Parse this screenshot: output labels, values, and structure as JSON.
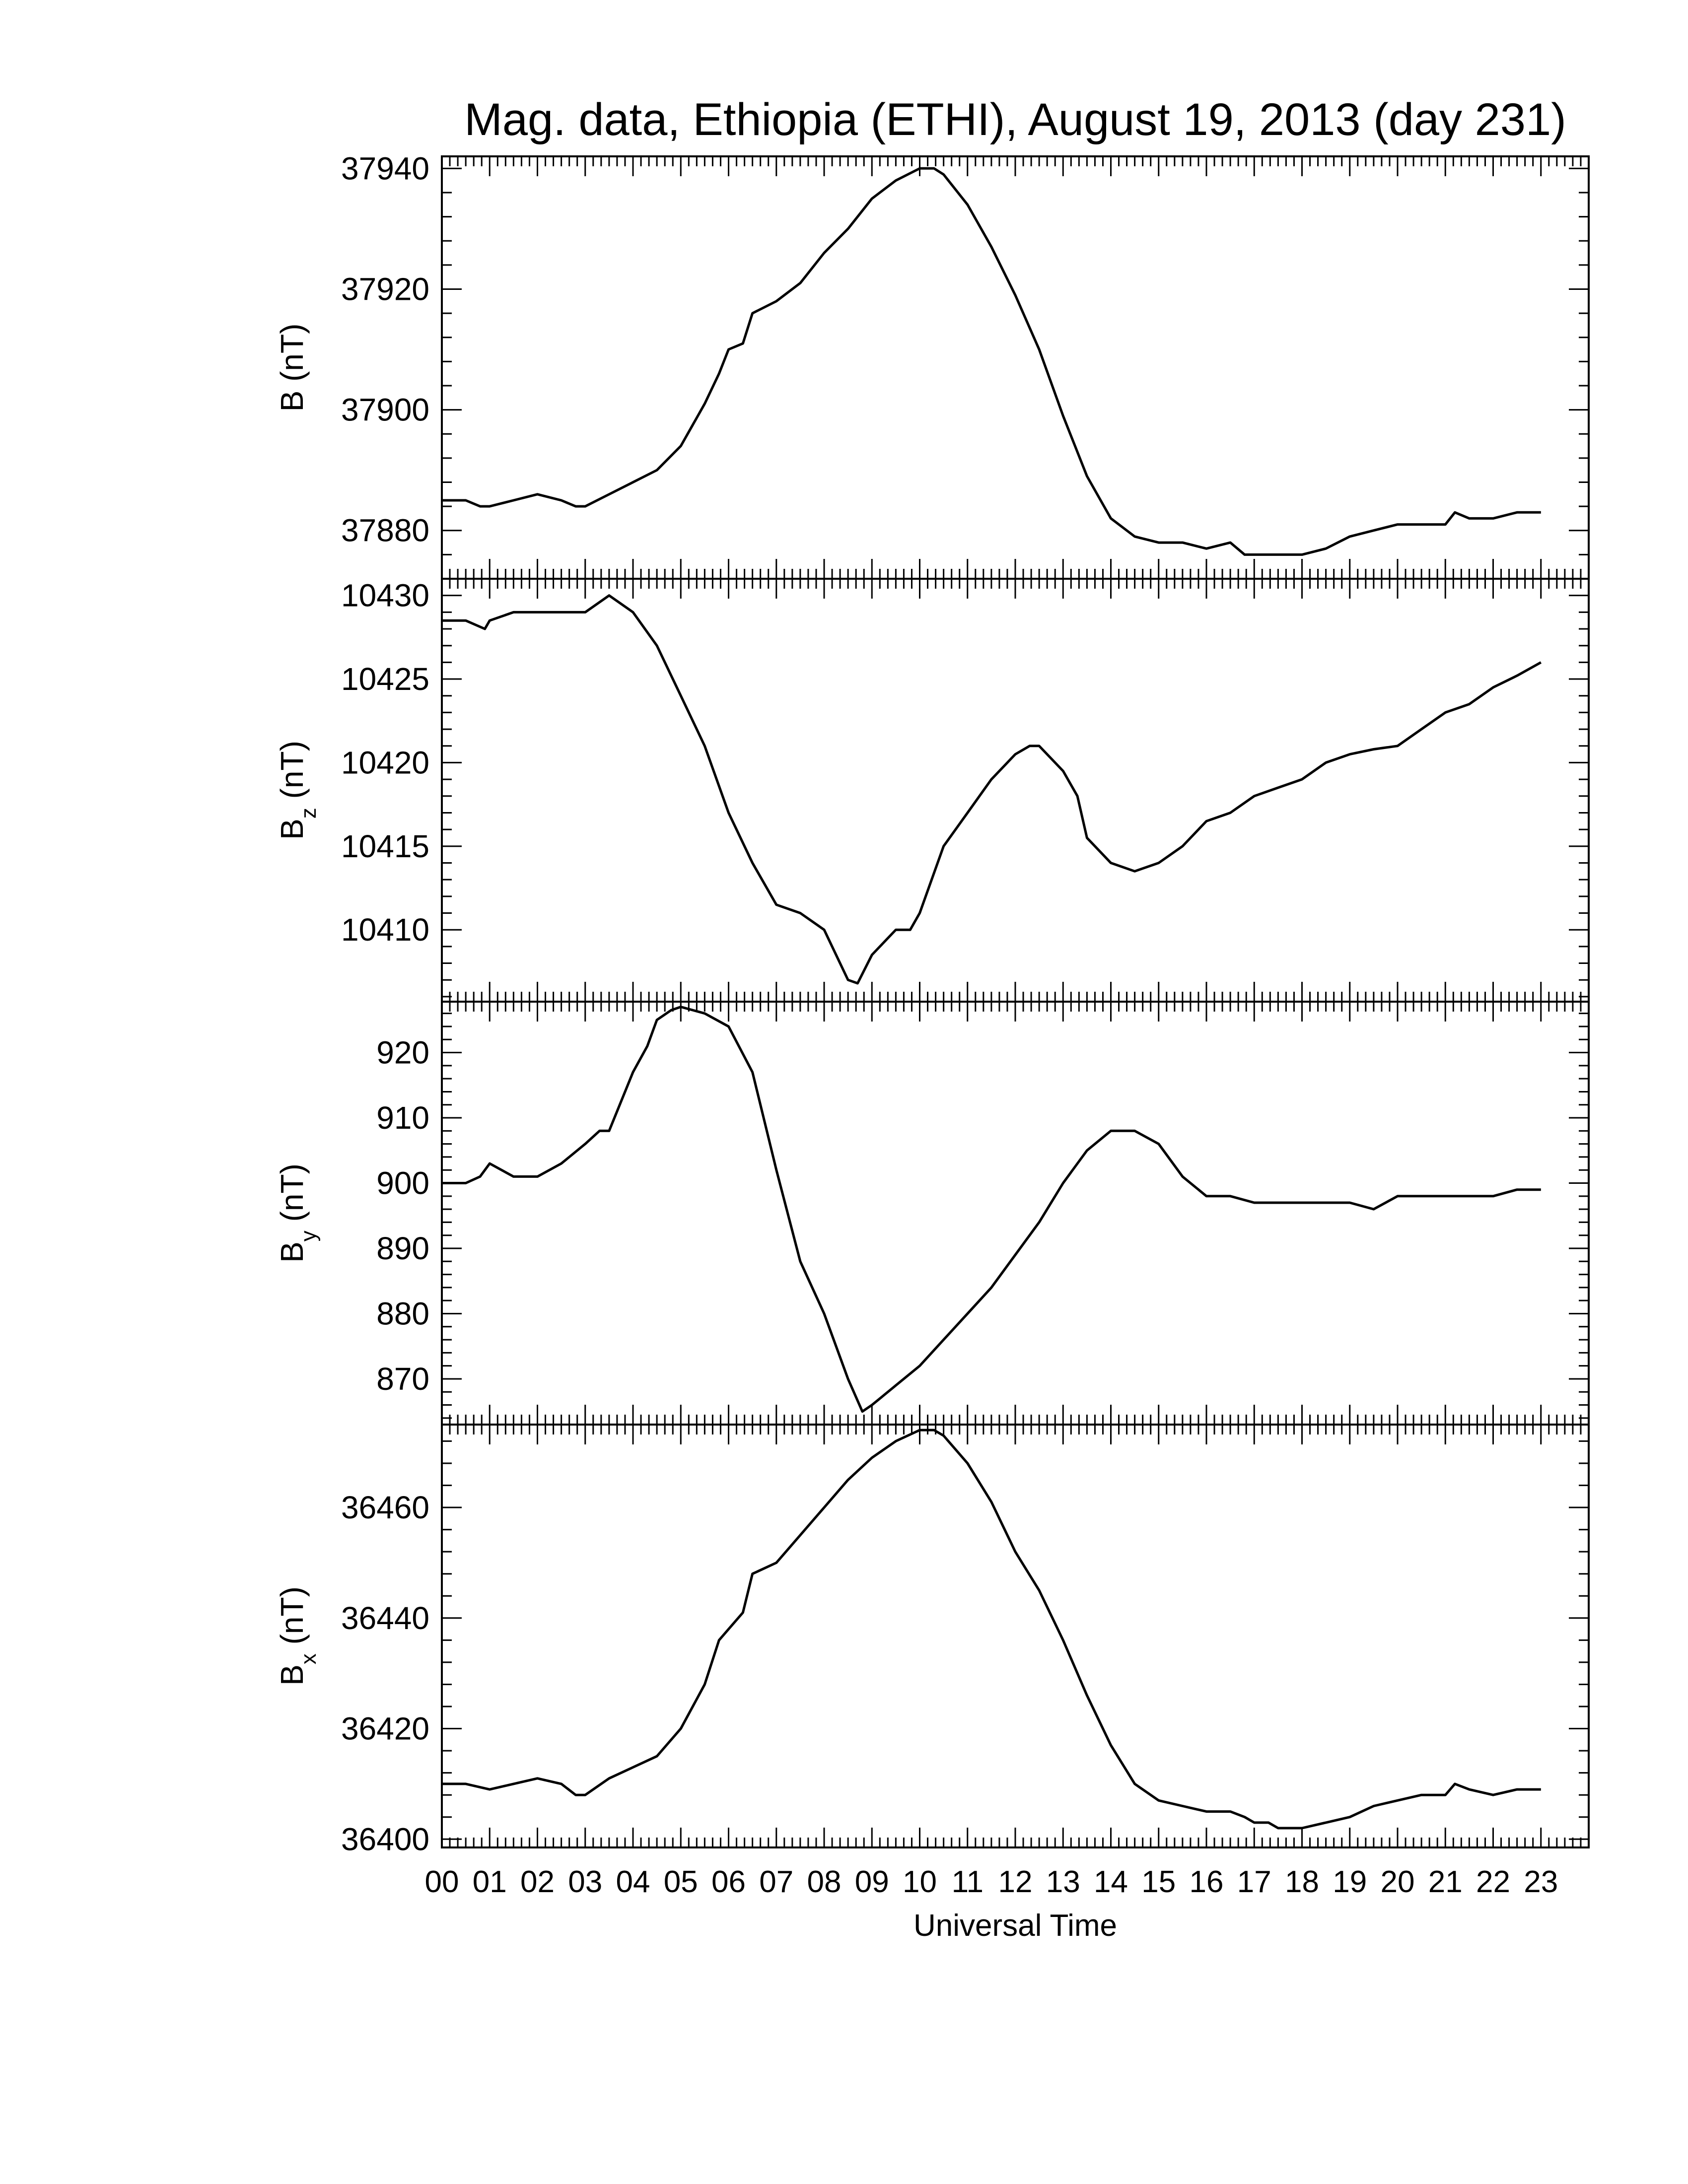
{
  "chart_data": {
    "type": "line",
    "title": "Mag. data, Ethiopia (ETHI), August 19, 2013 (day 231)",
    "xlabel": "Universal Time",
    "xlim": [
      0,
      24
    ],
    "x_tick_labels": [
      "00",
      "01",
      "02",
      "03",
      "04",
      "05",
      "06",
      "07",
      "08",
      "09",
      "10",
      "11",
      "12",
      "13",
      "14",
      "15",
      "16",
      "17",
      "18",
      "19",
      "20",
      "21",
      "22",
      "23"
    ],
    "color": "#000000",
    "panels": [
      {
        "name": "B",
        "ylabel_main": "B",
        "ylabel_sub": "",
        "ylabel_unit": " (nT)",
        "ylim": [
          37872,
          37942
        ],
        "y_ticks": [
          37880,
          37900,
          37920,
          37940
        ],
        "y_tick_labels": [
          "37880",
          "37900",
          "37920",
          "37940"
        ],
        "x": [
          0,
          0.5,
          0.8,
          1,
          1.5,
          2,
          2.5,
          2.8,
          3,
          3.5,
          4,
          4.5,
          5,
          5.5,
          5.8,
          6,
          6.3,
          6.5,
          7,
          7.5,
          8,
          8.5,
          9,
          9.5,
          10,
          10.3,
          10.5,
          11,
          11.5,
          12,
          12.5,
          13,
          13.5,
          14,
          14.5,
          15,
          15.5,
          16,
          16.5,
          16.8,
          17,
          17.3,
          17.5,
          18,
          18.5,
          19,
          19.5,
          20,
          20.5,
          21,
          21.2,
          21.5,
          22,
          22.5,
          23
        ],
        "y": [
          37885,
          37885,
          37884,
          37884,
          37885,
          37886,
          37885,
          37884,
          37884,
          37886,
          37888,
          37890,
          37894,
          37901,
          37906,
          37910,
          37911,
          37916,
          37918,
          37921,
          37926,
          37930,
          37935,
          37938,
          37940,
          37940,
          37939,
          37934,
          37927,
          37919,
          37910,
          37899,
          37889,
          37882,
          37879,
          37878,
          37878,
          37877,
          37878,
          37876,
          37876,
          37876,
          37876,
          37876,
          37877,
          37879,
          37880,
          37881,
          37881,
          37881,
          37883,
          37882,
          37882,
          37883,
          37883
        ]
      },
      {
        "name": "Bz",
        "ylabel_main": "B",
        "ylabel_sub": "z",
        "ylabel_unit": " (nT)",
        "ylim": [
          10405.7,
          10431
        ],
        "y_ticks": [
          10410,
          10415,
          10420,
          10425,
          10430
        ],
        "y_tick_labels": [
          "10410",
          "10415",
          "10420",
          "10425",
          "10430"
        ],
        "x": [
          0,
          0.5,
          0.9,
          1,
          1.5,
          2,
          2.5,
          3,
          3.5,
          4,
          4.5,
          5,
          5.5,
          6,
          6.5,
          7,
          7.5,
          8,
          8.5,
          8.7,
          9,
          9.5,
          9.8,
          10,
          10.5,
          11,
          11.5,
          12,
          12.3,
          12.5,
          13,
          13.3,
          13.5,
          14,
          14.5,
          15,
          15.5,
          16,
          16.5,
          17,
          17.5,
          18,
          18.5,
          19,
          19.5,
          20,
          20.5,
          21,
          21.5,
          22,
          22.5,
          23
        ],
        "y": [
          10428.5,
          10428.5,
          10428,
          10428.5,
          10429,
          10429,
          10429,
          10429,
          10430,
          10429,
          10427,
          10424,
          10421,
          10417,
          10414,
          10411.5,
          10411,
          10410,
          10407,
          10406.8,
          10408.5,
          10410,
          10410,
          10411,
          10415,
          10417,
          10419,
          10420.5,
          10421,
          10421,
          10419.5,
          10418,
          10415.5,
          10414,
          10413.5,
          10414,
          10415,
          10416.5,
          10417,
          10418,
          10418.5,
          10419,
          10420,
          10420.5,
          10420.8,
          10421,
          10422,
          10423,
          10423.5,
          10424.5,
          10425.2,
          10426
        ]
      },
      {
        "name": "By",
        "ylabel_main": "B",
        "ylabel_sub": "y",
        "ylabel_unit": " (nT)",
        "ylim": [
          863,
          927.8
        ],
        "y_ticks": [
          870,
          880,
          890,
          900,
          910,
          920
        ],
        "y_tick_labels": [
          "870",
          "880",
          "890",
          "900",
          "910",
          "920"
        ],
        "x": [
          0,
          0.5,
          0.8,
          1,
          1.5,
          2,
          2.5,
          3,
          3.3,
          3.5,
          4,
          4.3,
          4.5,
          4.8,
          5,
          5.5,
          6,
          6.5,
          7,
          7.5,
          8,
          8.5,
          8.8,
          9,
          9.5,
          10,
          10.5,
          11,
          11.5,
          12,
          12.5,
          13,
          13.5,
          14,
          14.3,
          14.5,
          15,
          15.5,
          16,
          16.5,
          17,
          17.5,
          18,
          18.5,
          19,
          19.5,
          20,
          20.5,
          21,
          21.5,
          22,
          22.5,
          23
        ],
        "y": [
          900,
          900,
          901,
          903,
          901,
          901,
          903,
          906,
          908,
          908,
          917,
          921,
          925,
          926.5,
          927,
          926,
          924,
          917,
          902,
          888,
          880,
          870,
          865,
          866,
          869,
          872,
          876,
          880,
          884,
          889,
          894,
          900,
          905,
          908,
          908,
          908,
          906,
          901,
          898,
          898,
          897,
          897,
          897,
          897,
          897,
          896,
          898,
          898,
          898,
          898,
          898,
          899,
          899
        ]
      },
      {
        "name": "Bx",
        "ylabel_main": "B",
        "ylabel_sub": "x",
        "ylabel_unit": " (nT)",
        "ylim": [
          36398.5,
          36475
        ],
        "y_ticks": [
          36400,
          36420,
          36440,
          36460
        ],
        "y_tick_labels": [
          "36400",
          "36420",
          "36440",
          "36460"
        ],
        "x": [
          0,
          0.5,
          1,
          1.5,
          2,
          2.5,
          2.8,
          3,
          3.5,
          4,
          4.5,
          5,
          5.5,
          5.8,
          6,
          6.3,
          6.5,
          7,
          7.5,
          8,
          8.5,
          9,
          9.5,
          10,
          10.3,
          10.5,
          11,
          11.5,
          12,
          12.5,
          13,
          13.5,
          14,
          14.5,
          15,
          15.5,
          16,
          16.5,
          16.8,
          17,
          17.3,
          17.5,
          18,
          18.5,
          19,
          19.5,
          20,
          20.5,
          21,
          21.2,
          21.5,
          22,
          22.5,
          23
        ],
        "y": [
          36410,
          36410,
          36409,
          36410,
          36411,
          36410,
          36408,
          36408,
          36411,
          36413,
          36415,
          36420,
          36428,
          36436,
          36438,
          36441,
          36448,
          36450,
          36455,
          36460,
          36465,
          36469,
          36472,
          36474,
          36474,
          36473,
          36468,
          36461,
          36452,
          36445,
          36436,
          36426,
          36417,
          36410,
          36407,
          36406,
          36405,
          36405,
          36404,
          36403,
          36403,
          36402,
          36402,
          36403,
          36404,
          36406,
          36407,
          36408,
          36408,
          36410,
          36409,
          36408,
          36409,
          36409
        ]
      }
    ]
  }
}
